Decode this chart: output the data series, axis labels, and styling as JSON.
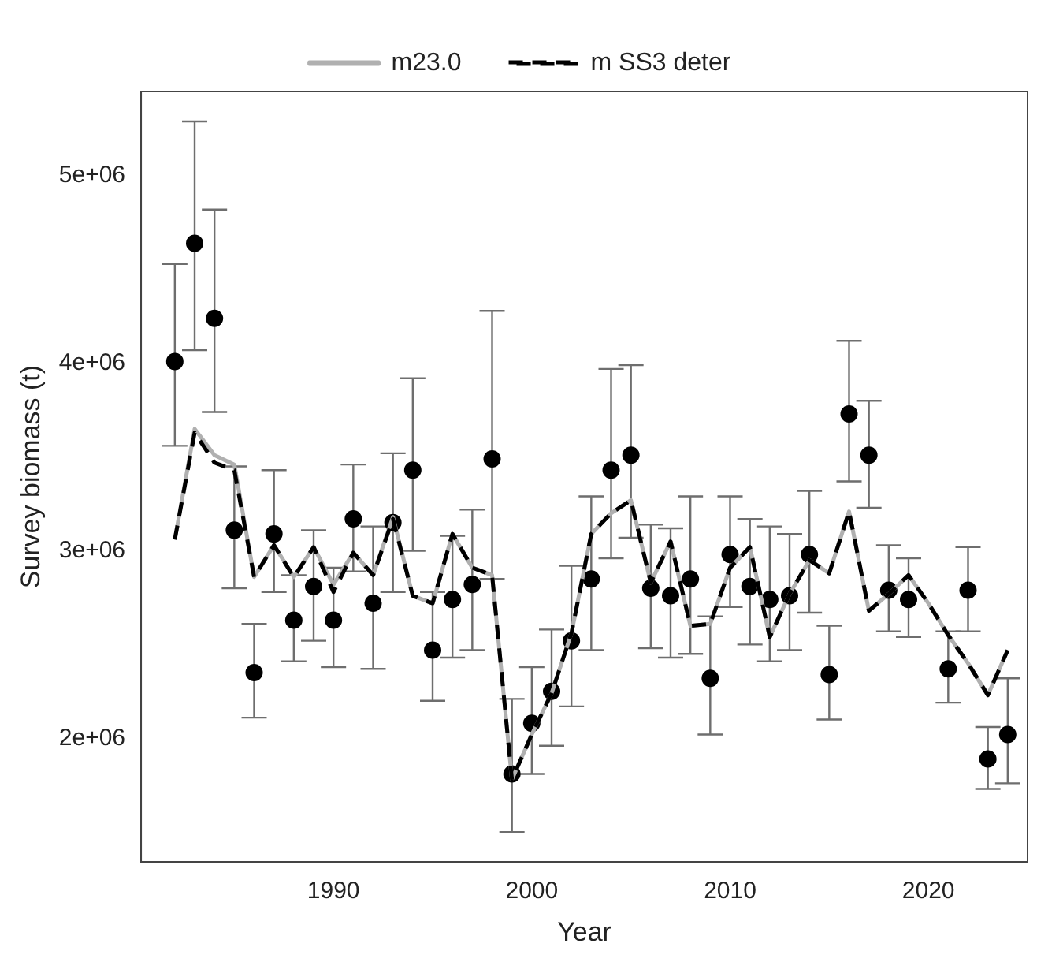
{
  "chart_data": {
    "type": "line",
    "xlabel": "Year",
    "ylabel": "Survey biomass (t)",
    "x": [
      1982,
      1983,
      1984,
      1985,
      1986,
      1987,
      1988,
      1989,
      1990,
      1991,
      1992,
      1993,
      1994,
      1995,
      1996,
      1997,
      1998,
      1999,
      2000,
      2001,
      2002,
      2003,
      2004,
      2005,
      2006,
      2007,
      2008,
      2009,
      2010,
      2011,
      2012,
      2013,
      2014,
      2015,
      2016,
      2017,
      2018,
      2019,
      2020,
      2021,
      2022,
      2023,
      2024
    ],
    "series": [
      {
        "type": "scatter",
        "color": "#000000",
        "marker": "circle",
        "values": [
          4010000,
          4640000,
          4240000,
          3110000,
          2350000,
          3090000,
          2630000,
          2810000,
          2630000,
          3170000,
          2720000,
          3150000,
          3430000,
          2470000,
          2740000,
          2820000,
          3490000,
          1810000,
          2080000,
          2250000,
          2520000,
          2850000,
          3430000,
          3510000,
          2800000,
          2760000,
          2850000,
          2320000,
          2980000,
          2810000,
          2740000,
          2760000,
          2980000,
          2340000,
          3730000,
          3510000,
          2790000,
          2740000,
          null,
          2370000,
          2790000,
          1890000,
          2020000
        ],
        "errors": [
          [
            3560000,
            4530000
          ],
          [
            4070000,
            5290000
          ],
          [
            3740000,
            4820000
          ],
          [
            2800000,
            3450000
          ],
          [
            2110000,
            2610000
          ],
          [
            2780000,
            3430000
          ],
          [
            2410000,
            2870000
          ],
          [
            2520000,
            3110000
          ],
          [
            2380000,
            2910000
          ],
          [
            2890000,
            3460000
          ],
          [
            2370000,
            3130000
          ],
          [
            2780000,
            3520000
          ],
          [
            3000000,
            3920000
          ],
          [
            2200000,
            2780000
          ],
          [
            2430000,
            3080000
          ],
          [
            2470000,
            3220000
          ],
          [
            2850000,
            4280000
          ],
          [
            1500000,
            2210000
          ],
          [
            1810000,
            2380000
          ],
          [
            1960000,
            2580000
          ],
          [
            2170000,
            2920000
          ],
          [
            2470000,
            3290000
          ],
          [
            2960000,
            3970000
          ],
          [
            3070000,
            3990000
          ],
          [
            2480000,
            3140000
          ],
          [
            2430000,
            3120000
          ],
          [
            2450000,
            3290000
          ],
          [
            2020000,
            2650000
          ],
          [
            2700000,
            3290000
          ],
          [
            2500000,
            3170000
          ],
          [
            2410000,
            3130000
          ],
          [
            2470000,
            3090000
          ],
          [
            2670000,
            3320000
          ],
          [
            2100000,
            2600000
          ],
          [
            3370000,
            4120000
          ],
          [
            3230000,
            3800000
          ],
          [
            2570000,
            3030000
          ],
          [
            2540000,
            2960000
          ],
          null,
          [
            2190000,
            2570000
          ],
          [
            2570000,
            3020000
          ],
          [
            1730000,
            2060000
          ],
          [
            1760000,
            2320000
          ]
        ]
      },
      {
        "name": "m23.0",
        "color": "#b0b0b0",
        "line_style": "solid",
        "marker": "none",
        "values": [
          3060000,
          3650000,
          3510000,
          3460000,
          2860000,
          3030000,
          2860000,
          3020000,
          2820000,
          2990000,
          2870000,
          3180000,
          2760000,
          2720000,
          3090000,
          2910000,
          2870000,
          1780000,
          2020000,
          2240000,
          2560000,
          3090000,
          3200000,
          3270000,
          2830000,
          3050000,
          2600000,
          2610000,
          2910000,
          3020000,
          2540000,
          2770000,
          2950000,
          2880000,
          3210000,
          2680000,
          2770000,
          2870000,
          2720000,
          2550000,
          2400000,
          2230000,
          2470000
        ]
      },
      {
        "name": "m SS3 deter",
        "color": "#000000",
        "line_style": "dashed",
        "marker": "none",
        "values": [
          3060000,
          3630000,
          3470000,
          3430000,
          2860000,
          3030000,
          2860000,
          3020000,
          2780000,
          2990000,
          2870000,
          3170000,
          2760000,
          2720000,
          3090000,
          2910000,
          2870000,
          1780000,
          2020000,
          2240000,
          2560000,
          3090000,
          3200000,
          3270000,
          2830000,
          3050000,
          2600000,
          2610000,
          2910000,
          3020000,
          2540000,
          2770000,
          2950000,
          2880000,
          3210000,
          2680000,
          2770000,
          2870000,
          2720000,
          2550000,
          2400000,
          2230000,
          2470000
        ]
      }
    ],
    "xlim": [
      1980.3,
      2025
    ],
    "xticks": [
      1990,
      2000,
      2010,
      2020
    ],
    "ylim": [
      1340000,
      5450000
    ],
    "yticks": [
      {
        "value": 2000000,
        "label": "2e+06"
      },
      {
        "value": 3000000,
        "label": "3e+06"
      },
      {
        "value": 4000000,
        "label": "4e+06"
      },
      {
        "value": 5000000,
        "label": "5e+06"
      }
    ],
    "grid": false,
    "legend": "top"
  }
}
